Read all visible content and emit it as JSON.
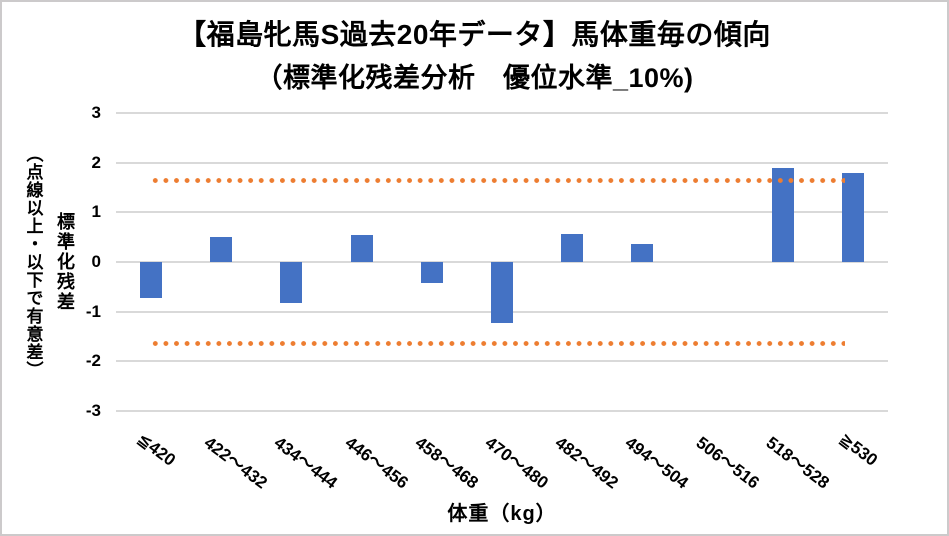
{
  "title": {
    "line1": "【福島牝馬S過去20年データ】馬体重毎の傾向",
    "line2": "（標準化残差分析　優位水準_10%)"
  },
  "y_axis": {
    "title": "標準化残差",
    "note": "（点線以上・以下で有意差）",
    "ticks": [
      "3",
      "2",
      "1",
      "0",
      "-1",
      "-2",
      "-3"
    ],
    "range": [
      -3,
      3
    ]
  },
  "x_axis": {
    "title": "体重（kg）"
  },
  "chart_data": {
    "type": "bar",
    "title": "【福島牝馬S過去20年データ】馬体重毎の傾向（標準化残差分析　優位水準_10%)",
    "categories": [
      "≦420",
      "422～432",
      "434～444",
      "446～456",
      "458～468",
      "470～480",
      "482～492",
      "494～504",
      "506～516",
      "518～528",
      "≧530"
    ],
    "values": [
      -0.72,
      0.5,
      -0.82,
      0.55,
      -0.42,
      -1.22,
      0.57,
      0.37,
      0,
      1.9,
      1.8
    ],
    "xlabel": "体重（kg）",
    "ylabel": "標準化残差",
    "ylim": [
      -3,
      3
    ],
    "grid": true,
    "legend": "none",
    "significance_lines": {
      "upper": 1.645,
      "lower": -1.645,
      "style": "dotted",
      "color": "#ED7D31"
    },
    "colors": {
      "bar": "#4472C4",
      "gridline": "#D9D9D9",
      "text": "#000000"
    }
  }
}
